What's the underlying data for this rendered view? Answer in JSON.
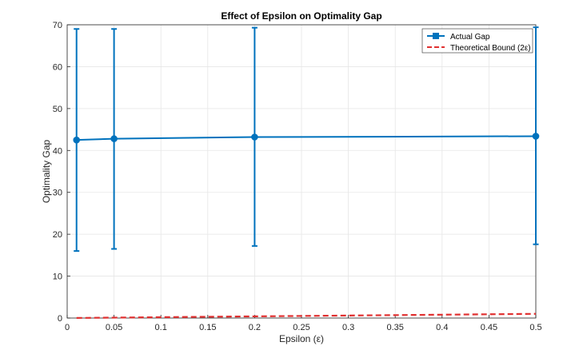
{
  "chart_data": {
    "type": "line",
    "title": "Effect of Epsilon on Optimality Gap",
    "xlabel": "Epsilon (ε)",
    "ylabel": "Optimality Gap",
    "xlim": [
      0,
      0.5
    ],
    "ylim": [
      0,
      70
    ],
    "xticks": [
      0,
      0.05,
      0.1,
      0.15,
      0.2,
      0.25,
      0.3,
      0.35,
      0.4,
      0.45,
      0.5
    ],
    "xtick_labels": [
      "0",
      "0.05",
      "0.1",
      "0.15",
      "0.2",
      "0.25",
      "0.3",
      "0.35",
      "0.4",
      "0.45",
      "0.5"
    ],
    "yticks": [
      0,
      10,
      20,
      30,
      40,
      50,
      60,
      70
    ],
    "ytick_labels": [
      "0",
      "10",
      "20",
      "30",
      "40",
      "50",
      "60",
      "70"
    ],
    "grid": true,
    "legend_position": "top-right",
    "series": [
      {
        "name": "Actual Gap",
        "color": "#0072BD",
        "style": "solid-marker-errorbar",
        "x": [
          0.01,
          0.05,
          0.2,
          0.5
        ],
        "y": [
          42.5,
          42.8,
          43.2,
          43.4
        ],
        "err_low": [
          16.0,
          16.5,
          17.2,
          17.6
        ],
        "err_high": [
          69.0,
          69.0,
          69.3,
          69.4
        ]
      },
      {
        "name": "Theoretical Bound (2ε)",
        "color": "#D95319",
        "line_color": "#E03030",
        "style": "dashed",
        "x": [
          0.01,
          0.05,
          0.2,
          0.5
        ],
        "y": [
          0.02,
          0.1,
          0.4,
          1.0
        ]
      }
    ]
  }
}
